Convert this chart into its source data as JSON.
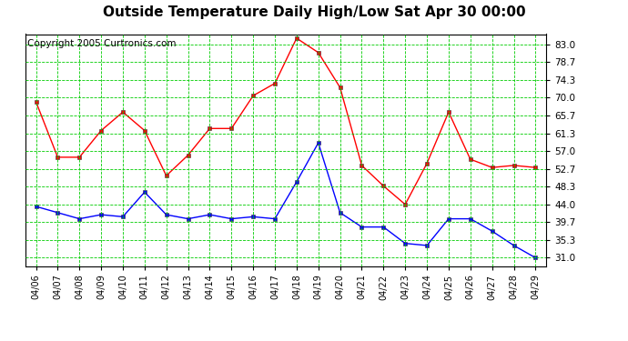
{
  "title": "Outside Temperature Daily High/Low Sat Apr 30 00:00",
  "copyright": "Copyright 2005 Curtronics.com",
  "dates": [
    "04/06",
    "04/07",
    "04/08",
    "04/09",
    "04/10",
    "04/11",
    "04/12",
    "04/13",
    "04/14",
    "04/15",
    "04/16",
    "04/17",
    "04/18",
    "04/19",
    "04/20",
    "04/21",
    "04/22",
    "04/23",
    "04/24",
    "04/25",
    "04/26",
    "04/27",
    "04/28",
    "04/29"
  ],
  "high": [
    69.0,
    55.5,
    55.5,
    62.0,
    66.5,
    62.0,
    51.0,
    56.0,
    62.5,
    62.5,
    70.5,
    73.5,
    84.5,
    81.0,
    72.5,
    53.5,
    48.5,
    44.0,
    54.0,
    66.5,
    55.0,
    53.0,
    53.5,
    53.0
  ],
  "low": [
    43.5,
    42.0,
    40.5,
    41.5,
    41.0,
    47.0,
    41.5,
    40.5,
    41.5,
    40.5,
    41.0,
    40.5,
    49.5,
    59.0,
    42.0,
    38.5,
    38.5,
    34.5,
    34.0,
    40.5,
    40.5,
    37.5,
    34.0,
    31.0
  ],
  "high_color": "#ff0000",
  "low_color": "#0000ff",
  "bg_color": "#ffffff",
  "plot_bg_color": "#ffffff",
  "grid_color": "#00cc00",
  "yticks": [
    31.0,
    35.3,
    39.7,
    44.0,
    48.3,
    52.7,
    57.0,
    61.3,
    65.7,
    70.0,
    74.3,
    78.7,
    83.0
  ],
  "ylim": [
    29.0,
    85.5
  ],
  "title_fontsize": 11,
  "copyright_fontsize": 7.5
}
